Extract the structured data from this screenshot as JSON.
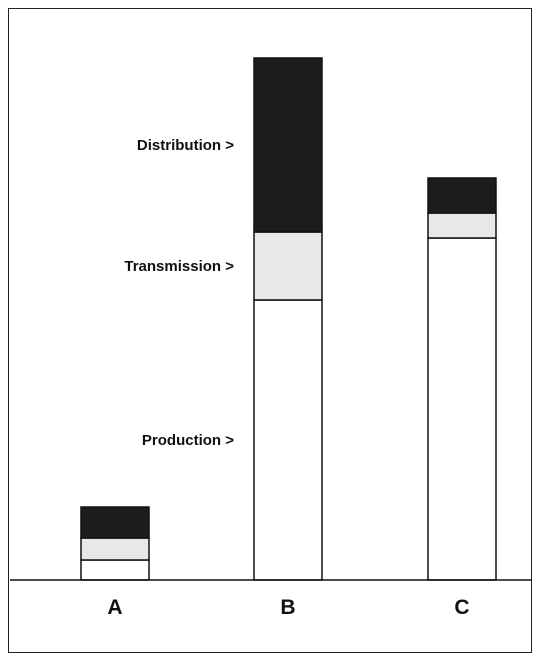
{
  "chart_data": {
    "type": "bar",
    "stacked": true,
    "categories": [
      "A",
      "B",
      "C"
    ],
    "series": [
      {
        "key": "production",
        "values": [
          20,
          280,
          342
        ],
        "color": "#ffffff"
      },
      {
        "key": "transmission",
        "values": [
          22,
          68,
          25
        ],
        "color": "#e8e8e8"
      },
      {
        "key": "distribution",
        "values": [
          31,
          174,
          35
        ],
        "color": "#1c1c1c"
      }
    ],
    "segment_labels": [
      {
        "series": "distribution",
        "text": "Distribution >"
      },
      {
        "series": "transmission",
        "text": "Transmission >"
      },
      {
        "series": "production",
        "text": "Production >"
      }
    ],
    "ylim": [
      0,
      530
    ],
    "grid": false,
    "legend": "none",
    "title": "",
    "xlabel": "",
    "ylabel": ""
  }
}
